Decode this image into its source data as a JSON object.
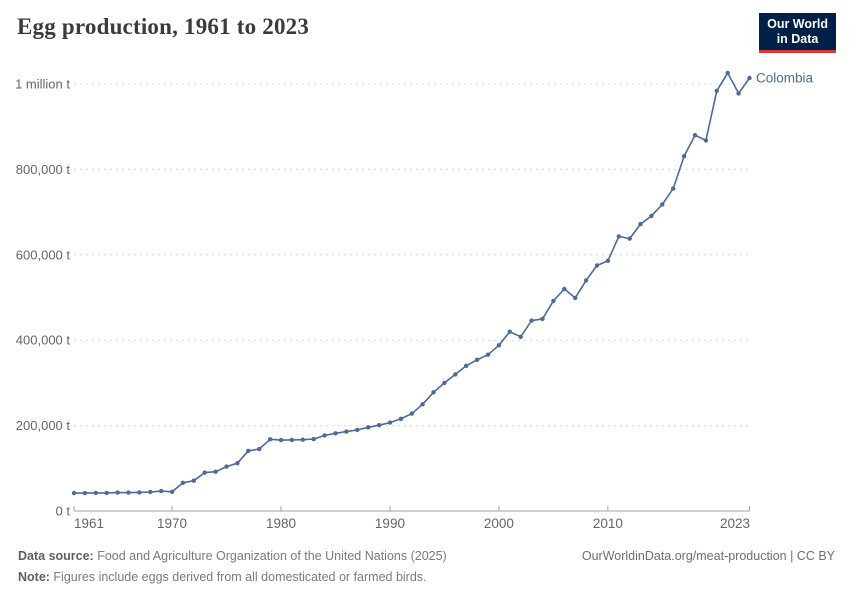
{
  "header": {
    "title": "Egg production, 1961 to 2023"
  },
  "logo": {
    "line1": "Our World",
    "line2": "in Data",
    "bg_color": "#002147",
    "accent_color": "#D93A34"
  },
  "chart_data": {
    "type": "line",
    "title": "Egg production, 1961 to 2023",
    "grid": "horizontal-dashed",
    "legend_position": "end-of-line-label",
    "xlim": [
      1961,
      2023
    ],
    "ylim": [
      0,
      1000000
    ],
    "x_ticks": [
      1961,
      1970,
      1980,
      1990,
      2000,
      2010,
      2023
    ],
    "y_ticks": [
      {
        "value": 0,
        "label": "0 t"
      },
      {
        "value": 200000,
        "label": "200,000 t"
      },
      {
        "value": 400000,
        "label": "400,000 t"
      },
      {
        "value": 600000,
        "label": "600,000 t"
      },
      {
        "value": 800000,
        "label": "800,000 t"
      },
      {
        "value": 1000000,
        "label": "1 million t"
      }
    ],
    "series": [
      {
        "name": "Colombia",
        "color": "#4C6A9C",
        "x": [
          1961,
          1962,
          1963,
          1964,
          1965,
          1966,
          1967,
          1968,
          1969,
          1970,
          1971,
          1972,
          1973,
          1974,
          1975,
          1976,
          1977,
          1978,
          1979,
          1980,
          1981,
          1982,
          1983,
          1984,
          1985,
          1986,
          1987,
          1988,
          1989,
          1990,
          1991,
          1992,
          1993,
          1994,
          1995,
          1996,
          1997,
          1998,
          1999,
          2000,
          2001,
          2002,
          2003,
          2004,
          2005,
          2006,
          2007,
          2008,
          2009,
          2010,
          2011,
          2012,
          2013,
          2014,
          2015,
          2016,
          2017,
          2018,
          2019,
          2020,
          2021,
          2022,
          2023
        ],
        "values": [
          42000,
          42000,
          42500,
          42500,
          43000,
          43000,
          43500,
          44500,
          46500,
          45000,
          66000,
          71000,
          90000,
          92000,
          104000,
          112000,
          141000,
          145000,
          168000,
          166000,
          166500,
          167000,
          168500,
          177000,
          182000,
          186000,
          190000,
          196000,
          201000,
          207000,
          216000,
          228000,
          250000,
          278000,
          300000,
          320000,
          340000,
          354000,
          366000,
          388000,
          420000,
          408000,
          446000,
          450000,
          492000,
          520000,
          499000,
          540000,
          575000,
          586000,
          643000,
          638000,
          672000,
          691000,
          718000,
          755000,
          831000,
          880000,
          868000,
          984000,
          1026000,
          978000,
          1014000
        ]
      }
    ],
    "end_label": "Colombia"
  },
  "footer": {
    "datasource_label": "Data source:",
    "datasource_text": " Food and Agriculture Organization of the United Nations (2025)",
    "note_label": "Note:",
    "note_text": " Figures include eggs derived from all domesticated or farmed birds.",
    "right_text": "OurWorldinData.org/meat-production | CC BY"
  }
}
